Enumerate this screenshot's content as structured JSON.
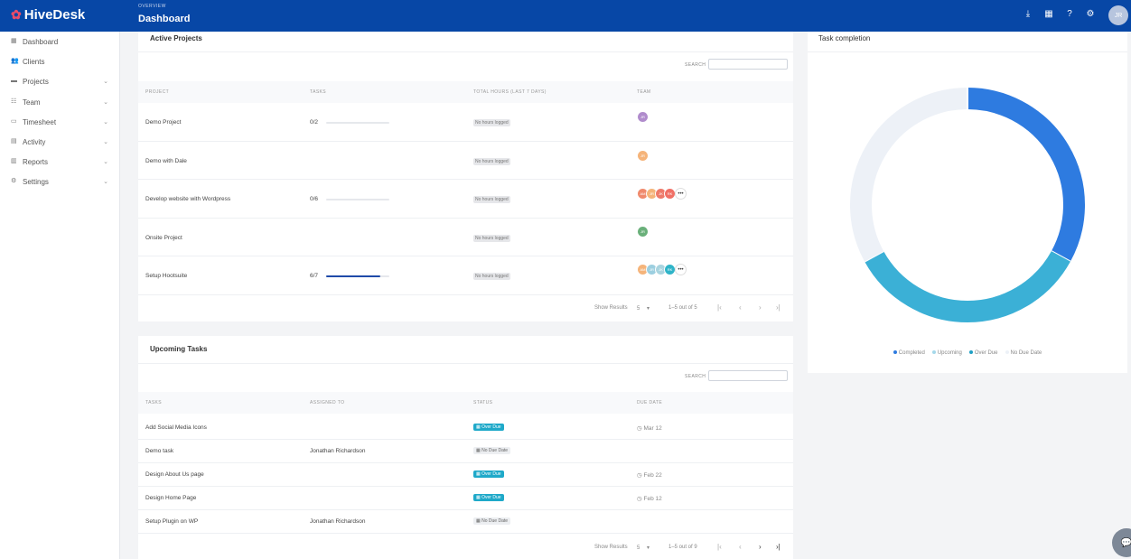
{
  "header": {
    "logo_text": "HiveDesk",
    "breadcrumb": "OVERVIEW",
    "title": "Dashboard",
    "icons": [
      "download-icon",
      "map-icon",
      "help-icon",
      "settings-icon"
    ],
    "avatar_initials": "JR"
  },
  "sidebar": {
    "items": [
      {
        "label": "Dashboard",
        "icon": "grid-icon",
        "expandable": false
      },
      {
        "label": "Clients",
        "icon": "users-icon",
        "expandable": false
      },
      {
        "label": "Projects",
        "icon": "folder-icon",
        "expandable": true
      },
      {
        "label": "Team",
        "icon": "team-icon",
        "expandable": true
      },
      {
        "label": "Timesheet",
        "icon": "timesheet-icon",
        "expandable": true
      },
      {
        "label": "Activity",
        "icon": "activity-icon",
        "expandable": true
      },
      {
        "label": "Reports",
        "icon": "reports-icon",
        "expandable": true
      },
      {
        "label": "Settings",
        "icon": "settings-icon",
        "expandable": true
      }
    ]
  },
  "projects": {
    "title": "Active Projects",
    "search_label": "SEARCH",
    "columns": [
      "PROJECT",
      "TASKS",
      "TOTAL HOURS (LAST 7 DAYS)",
      "TEAM"
    ],
    "rows": [
      {
        "name": "Demo Project",
        "tasks": "0/2",
        "progress": 0.0,
        "hours": "No hours logged"
      },
      {
        "name": "Demo with Dale",
        "tasks": "",
        "progress": null,
        "hours": "No hours logged"
      },
      {
        "name": "Develop website with Wordpress",
        "tasks": "0/6",
        "progress": 0.0,
        "hours": "No hours logged"
      },
      {
        "name": "Onsite Project",
        "tasks": "",
        "progress": null,
        "hours": "No hours logged"
      },
      {
        "name": "Setup Hootsuite",
        "tasks": "6/7",
        "progress": 0.857,
        "hours": "No hours logged"
      }
    ],
    "team_more": "•••",
    "show_results_label": "Show Results",
    "page_size": "5",
    "range": "1–5 out of 5"
  },
  "tasks": {
    "title": "Upcoming Tasks",
    "search_label": "SEARCH",
    "columns": [
      "TASKS",
      "ASSIGNED TO",
      "STATUS",
      "DUE DATE"
    ],
    "rows": [
      {
        "name": "Add Social Media Icons",
        "assignee": "",
        "status": "Over Due",
        "due": "Mar 12"
      },
      {
        "name": "Demo task",
        "assignee": "Jonathan Richardson",
        "status": "No Due Date",
        "due": ""
      },
      {
        "name": "Design About Us page",
        "assignee": "",
        "status": "Over Due",
        "due": "Feb 22"
      },
      {
        "name": "Design Home Page",
        "assignee": "",
        "status": "Over Due",
        "due": "Feb 12"
      },
      {
        "name": "Setup Plugin on WP",
        "assignee": "Jonathan Richardson",
        "status": "No Due Date",
        "due": ""
      }
    ],
    "show_results_label": "Show Results",
    "page_size": "5",
    "range": "1–5 out of 9"
  },
  "completion": {
    "title": "Task completion",
    "colors": {
      "Completed": "#2e7be0",
      "Upcoming": "#3bb0d6",
      "Over Due": "#1f9fc4",
      "No Due Date": "#edf1f7"
    },
    "legend": [
      "Completed",
      "Upcoming",
      "Over Due",
      "No Due Date"
    ]
  },
  "chart_data": {
    "type": "pie",
    "title": "Task completion",
    "categories": [
      "Completed",
      "Upcoming",
      "Over Due",
      "No Due Date"
    ],
    "values": [
      33,
      34,
      0,
      33
    ]
  }
}
